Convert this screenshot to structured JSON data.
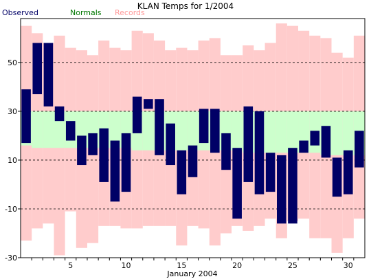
{
  "chart_data": {
    "type": "bar",
    "title": "KLAN Temps for 1/2004",
    "xlabel": "January 2004",
    "ylabel": "",
    "ylim": [
      -30,
      68
    ],
    "xlim": [
      0.5,
      31.5
    ],
    "y_ticks": [
      -30,
      -10,
      10,
      30,
      50
    ],
    "y_tick_labels": [
      "-30",
      "-10",
      "10",
      "30",
      "50"
    ],
    "x_ticks": [
      5,
      10,
      15,
      20,
      25,
      30
    ],
    "x_tick_labels": [
      "5",
      "10",
      "15",
      "20",
      "25",
      "30"
    ],
    "gridlines": [
      -10,
      10,
      30,
      50
    ],
    "days": [
      1,
      2,
      3,
      4,
      5,
      6,
      7,
      8,
      9,
      10,
      11,
      12,
      13,
      14,
      15,
      16,
      17,
      18,
      19,
      20,
      21,
      22,
      23,
      24,
      25,
      26,
      27,
      28,
      29,
      30,
      31
    ],
    "series": [
      {
        "name": "Records",
        "color": "#ffcccc",
        "high": [
          65,
          62,
          58,
          61,
          56,
          55,
          53,
          59,
          56,
          55,
          63,
          62,
          59,
          55,
          56,
          55,
          59,
          60,
          53,
          53,
          57,
          55,
          58,
          66,
          65,
          63,
          61,
          60,
          54,
          52,
          61
        ],
        "low": [
          -23,
          -18,
          -16,
          -29,
          -11,
          -26,
          -24,
          -17,
          -17,
          -18,
          -18,
          -17,
          -17,
          -17,
          -25,
          -17,
          -18,
          -25,
          -20,
          -17,
          -19,
          -17,
          -14,
          -22,
          -15,
          -14,
          -22,
          -22,
          -28,
          -22,
          -14
        ]
      },
      {
        "name": "Normals",
        "color": "#ccffcc",
        "high": [
          30,
          30,
          30,
          30,
          30,
          30,
          30,
          30,
          30,
          30,
          30,
          30,
          30,
          30,
          30,
          30,
          30,
          30,
          30,
          30,
          30,
          30,
          30,
          30,
          30,
          30,
          30,
          30,
          30,
          30,
          30
        ],
        "low": [
          16,
          15,
          15,
          15,
          15,
          15,
          15,
          15,
          15,
          15,
          14,
          14,
          14,
          14,
          14,
          14,
          14,
          14,
          14,
          14,
          13,
          13,
          13,
          13,
          13,
          13,
          13,
          12,
          12,
          12,
          12
        ]
      },
      {
        "name": "Observed",
        "color": "#000066",
        "high": [
          39,
          58,
          58,
          32,
          26,
          20,
          21,
          23,
          18,
          21,
          36,
          35,
          35,
          25,
          14,
          16,
          31,
          31,
          21,
          15,
          32,
          30,
          13,
          12,
          15,
          18,
          22,
          24,
          11,
          14,
          22
        ],
        "low": [
          17,
          37,
          32,
          26,
          18,
          8,
          12,
          1,
          -7,
          -3,
          21,
          31,
          12,
          8,
          -4,
          3,
          17,
          13,
          6,
          -14,
          1,
          -4,
          -3,
          -16,
          -16,
          13,
          16,
          11,
          -5,
          -4,
          7
        ]
      }
    ],
    "legend": {
      "placement": "top-left"
    },
    "grid": true
  }
}
